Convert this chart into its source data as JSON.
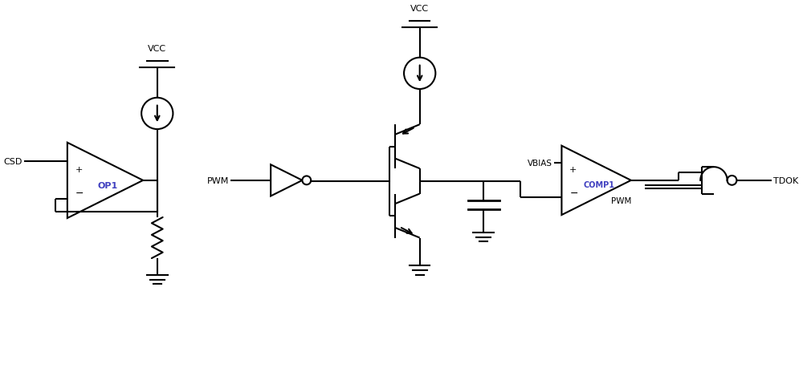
{
  "bg_color": "#ffffff",
  "line_color": "#000000",
  "lw": 1.5,
  "fig_width": 10.0,
  "fig_height": 4.6,
  "dpi": 100,
  "xlim": [
    0,
    10
  ],
  "ylim": [
    0,
    4.6
  ],
  "op1_label": "OP1",
  "comp1_label": "COMP1",
  "label_color": "#4040c0",
  "vcc_label": "VCC",
  "csd_label": "CSD",
  "pwm_label": "PWM",
  "vbias_label": "VBIAS",
  "tdok_label": "TDOK"
}
